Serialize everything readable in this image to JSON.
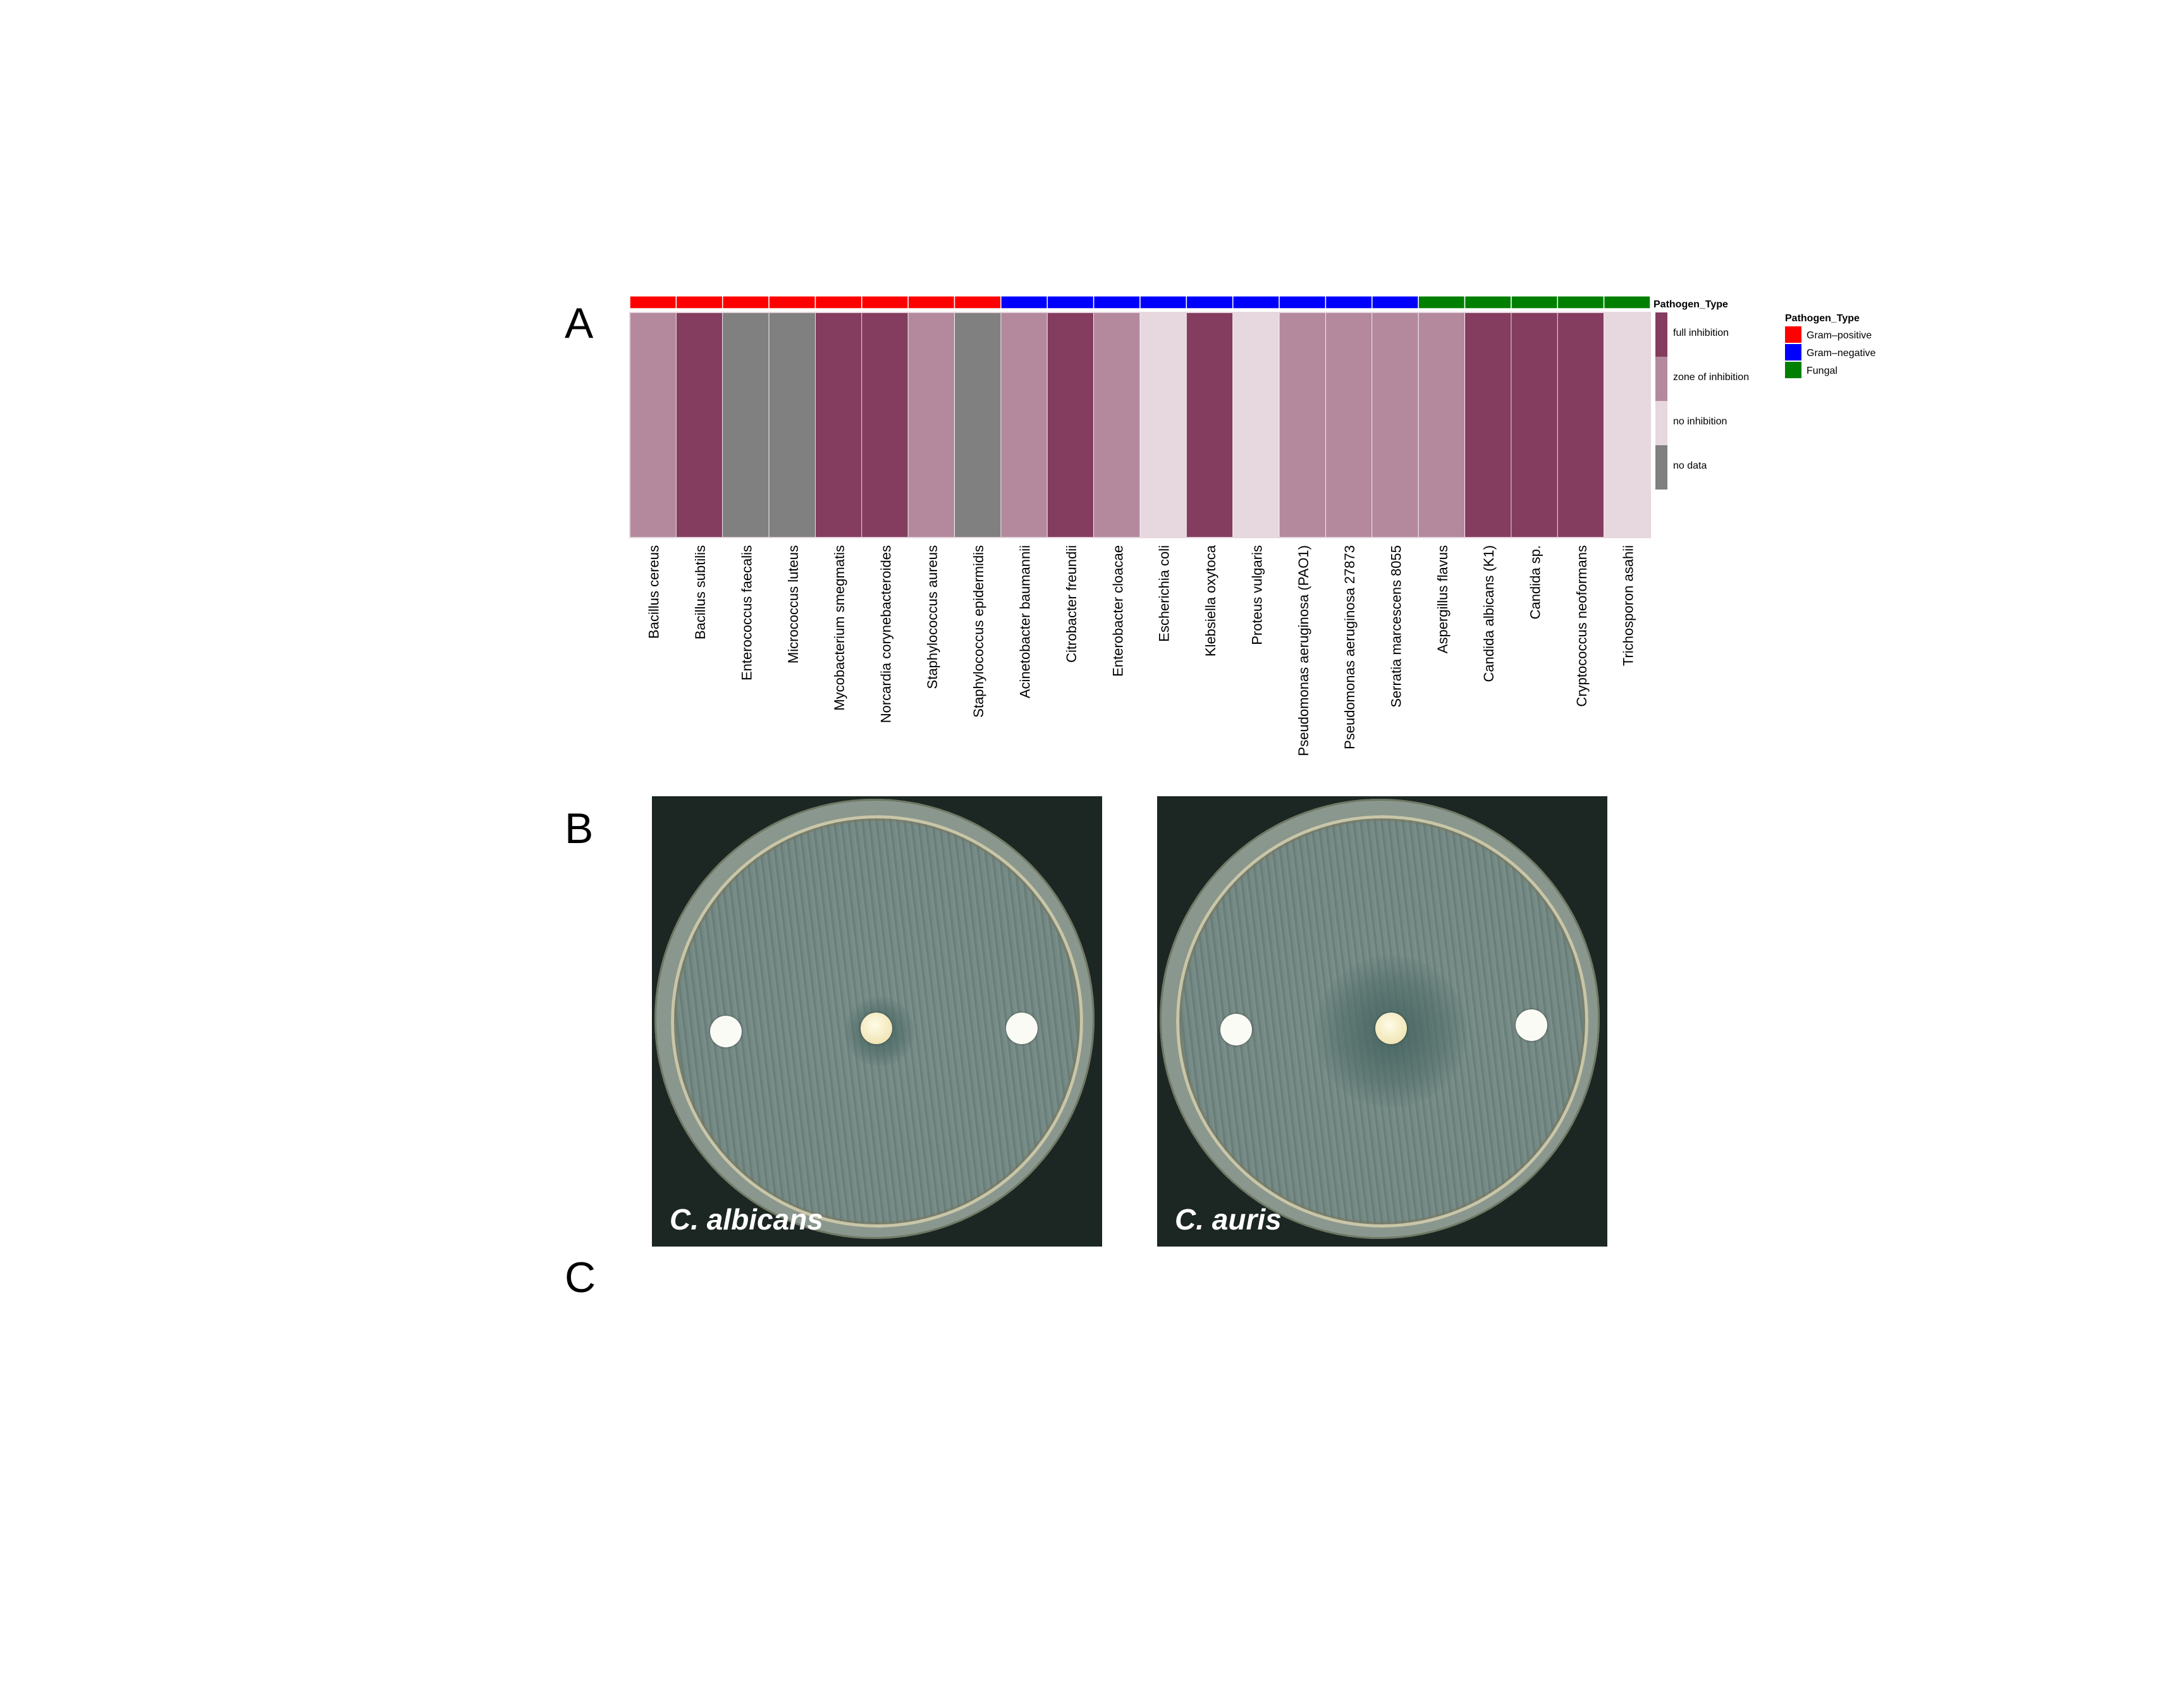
{
  "panel_letters": {
    "a": "A",
    "b": "B",
    "c": "C"
  },
  "chart_data": {
    "type": "heatmap",
    "title": "",
    "organisms": [
      "Bacillus cereus",
      "Bacillus subtilis",
      "Enterococcus faecalis",
      "Micrococcus luteus",
      "Mycobacterium smegmatis",
      "Norcardia corynebacteroides",
      "Staphylococcus aureus",
      "Staphylococcus epidermidis",
      "Acinetobacter baumannii",
      "Citrobacter freundii",
      "Enterobacter cloacae",
      "Escherichia coli",
      "Klebsiella oxytoca",
      "Proteus vulgaris",
      "Pseudomonas aeruginosa (PAO1)",
      "Pseudomonas aeruginosa 27873",
      "Serratia marcescens 8055",
      "Aspergillus flavus",
      "Candida albicans (K1)",
      "Candida sp.",
      "Cryptococcus neoformans",
      "Trichosporon asahii"
    ],
    "pathogen_type": [
      "Gram-positive",
      "Gram-positive",
      "Gram-positive",
      "Gram-positive",
      "Gram-positive",
      "Gram-positive",
      "Gram-positive",
      "Gram-positive",
      "Gram-negative",
      "Gram-negative",
      "Gram-negative",
      "Gram-negative",
      "Gram-negative",
      "Gram-negative",
      "Gram-negative",
      "Gram-negative",
      "Gram-negative",
      "Fungal",
      "Fungal",
      "Fungal",
      "Fungal",
      "Fungal"
    ],
    "values": [
      "zone of inhibition",
      "full inhibition",
      "no data",
      "no data",
      "full inhibition",
      "full inhibition",
      "zone of inhibition",
      "no data",
      "zone of inhibition",
      "full inhibition",
      "zone of inhibition",
      "no inhibition",
      "full inhibition",
      "no inhibition",
      "zone of inhibition",
      "zone of inhibition",
      "zone of inhibition",
      "zone of inhibition",
      "full inhibition",
      "full inhibition",
      "full inhibition",
      "no inhibition"
    ],
    "value_legend": {
      "title": "Pathogen_Type",
      "levels": [
        "full inhibition",
        "zone of inhibition",
        "no inhibition",
        "no data"
      ],
      "colors": {
        "full inhibition": "#843c5f",
        "zone of inhibition": "#b4899d",
        "no inhibition": "#e7d7de",
        "no data": "#808080"
      }
    },
    "type_legend": {
      "title": "Pathogen_Type",
      "labels": {
        "Gram-positive": "Gram–positive",
        "Gram-negative": "Gram–negative",
        "Fungal": "Fungal"
      },
      "order": [
        "Gram-positive",
        "Gram-negative",
        "Fungal"
      ],
      "colors": {
        "Gram-positive": "#ff0000",
        "Gram-negative": "#0000ff",
        "Fungal": "#008000"
      }
    }
  },
  "plates": [
    {
      "label": "C. albicans"
    },
    {
      "label": "C. auris"
    }
  ]
}
